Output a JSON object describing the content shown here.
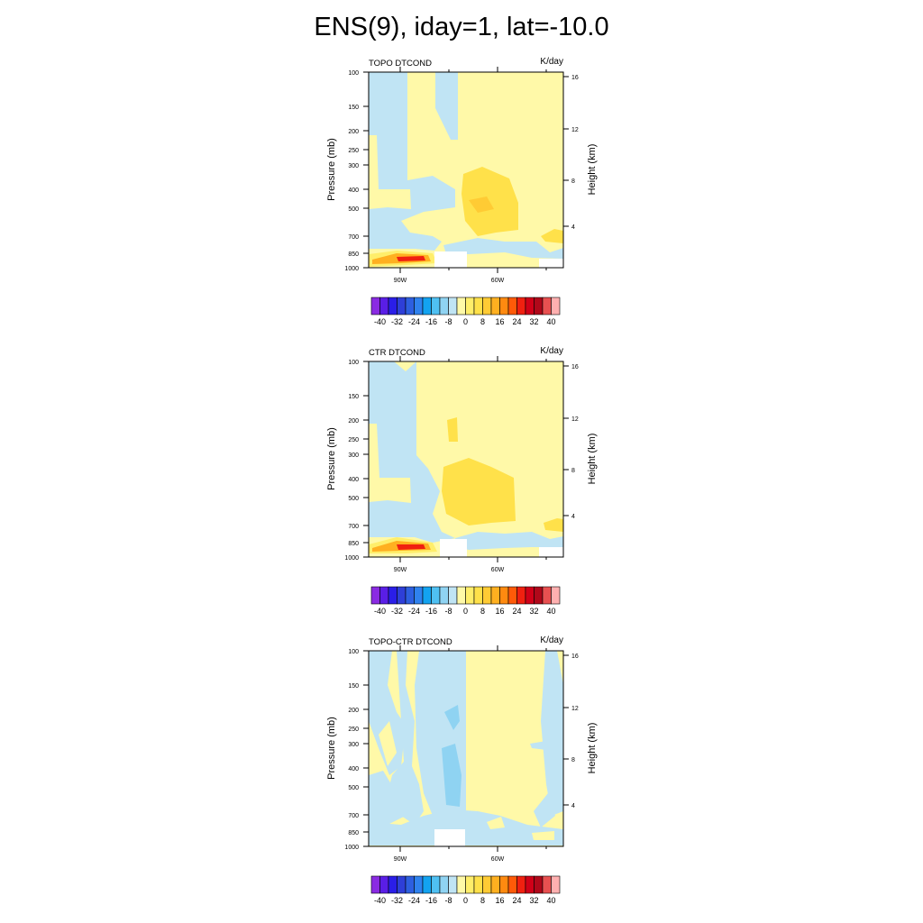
{
  "title": "ENS(9), iday=1, lat=-10.0",
  "units": "K/day",
  "left_axis_label": "Pressure (mb)",
  "right_axis_label": "Height (km)",
  "pressure_ticks": [
    "100",
    "150",
    "200",
    "250",
    "300",
    "400",
    "500",
    "700",
    "850",
    "1000"
  ],
  "height_ticks": [
    "16",
    "12",
    "8",
    "4"
  ],
  "lon_ticks": [
    "90W",
    "60W"
  ],
  "colorbar": {
    "labels": [
      "-40",
      "-32",
      "-24",
      "-16",
      "-8",
      "0",
      "8",
      "16",
      "24",
      "32",
      "40"
    ],
    "colors": [
      "#8a2be2",
      "#5a1ee6",
      "#2a1ee8",
      "#2e3fd8",
      "#2d5fe0",
      "#2f82ee",
      "#13a3f0",
      "#4fc0f2",
      "#8fd3f2",
      "#c0e4f4",
      "#fff9a8",
      "#ffee6a",
      "#ffe14a",
      "#ffcb34",
      "#ffb020",
      "#ff8a10",
      "#ff5a08",
      "#f02010",
      "#d00018",
      "#b0081a",
      "#e85050",
      "#ffb0b0"
    ]
  },
  "chart_data": [
    {
      "type": "heatmap",
      "title": "TOPO DTCOND",
      "units": "K/day",
      "ylabel": "Pressure (mb)",
      "y2label": "Height (km)",
      "x_ticks": [
        "90W",
        "60W"
      ],
      "y_ticks": [
        100,
        150,
        200,
        250,
        300,
        400,
        500,
        700,
        850,
        1000
      ],
      "y2_ticks": [
        16,
        12,
        8,
        4
      ],
      "levels": [
        -40,
        -36,
        -32,
        -28,
        -24,
        -20,
        -16,
        -12,
        -8,
        -4,
        0,
        4,
        8,
        12,
        16,
        20,
        24,
        28,
        32,
        36,
        40
      ],
      "features": [
        {
          "kind": "cooling",
          "range": [
            -4,
            0
          ],
          "region": "west column 98W-90W, 100-500 mb"
        },
        {
          "kind": "cooling",
          "range": [
            -4,
            0
          ],
          "region": "lower band 500-750 mb"
        },
        {
          "kind": "cooling",
          "range": [
            -4,
            0
          ],
          "region": "narrow column 83W-80W, 100-200 mb"
        },
        {
          "kind": "heating",
          "range": [
            0,
            4
          ],
          "region": "background east of 80W"
        },
        {
          "kind": "heating",
          "range": [
            4,
            8
          ],
          "region": "core near 62W, 330-560 mb"
        },
        {
          "kind": "heating",
          "range": [
            8,
            16
          ],
          "region": "inner core near 60W, 470-520 mb"
        },
        {
          "kind": "heating",
          "range": [
            8,
            32
          ],
          "region": "boundary layer 97W-85W, 850-900 mb"
        },
        {
          "kind": "missing",
          "region": "below surface 82W-76W, 880-1000 mb"
        }
      ]
    },
    {
      "type": "heatmap",
      "title": "CTR DTCOND",
      "units": "K/day",
      "ylabel": "Pressure (mb)",
      "y2label": "Height (km)",
      "x_ticks": [
        "90W",
        "60W"
      ],
      "y_ticks": [
        100,
        150,
        200,
        250,
        300,
        400,
        500,
        700,
        850,
        1000
      ],
      "y2_ticks": [
        16,
        12,
        8,
        4
      ],
      "levels": [
        -40,
        -36,
        -32,
        -28,
        -24,
        -20,
        -16,
        -12,
        -8,
        -4,
        0,
        4,
        8,
        12,
        16,
        20,
        24,
        28,
        32,
        36,
        40
      ],
      "features": [
        {
          "kind": "cooling",
          "range": [
            -4,
            0
          ],
          "region": "west column 98W-83W, 100-800 mb"
        },
        {
          "kind": "heating",
          "range": [
            0,
            4
          ],
          "region": "background east of 83W"
        },
        {
          "kind": "heating",
          "range": [
            4,
            8
          ],
          "region": "core near 70W, 340-650 mb"
        },
        {
          "kind": "heating",
          "range": [
            4,
            8
          ],
          "region": "small patch 75W, 190-250 mb"
        },
        {
          "kind": "heating",
          "range": [
            8,
            32
          ],
          "region": "boundary layer 97W-85W, 840-900 mb"
        },
        {
          "kind": "missing",
          "region": "below surface 80W-76W, 880-1000 mb"
        }
      ]
    },
    {
      "type": "heatmap",
      "title": "TOPO-CTR DTCOND",
      "units": "K/day",
      "ylabel": "Pressure (mb)",
      "y2label": "Height (km)",
      "x_ticks": [
        "90W",
        "60W"
      ],
      "y_ticks": [
        100,
        150,
        200,
        250,
        300,
        400,
        500,
        700,
        850,
        1000
      ],
      "y2_ticks": [
        16,
        12,
        8,
        4
      ],
      "levels": [
        -40,
        -36,
        -32,
        -28,
        -24,
        -20,
        -16,
        -12,
        -8,
        -4,
        0,
        4,
        8,
        12,
        16,
        20,
        24,
        28,
        32,
        36,
        40
      ],
      "features": [
        {
          "kind": "cooling",
          "range": [
            -4,
            0
          ],
          "region": "column 83W-74W, 100-850 mb"
        },
        {
          "kind": "cooling",
          "range": [
            -8,
            -4
          ],
          "region": "patch 77W, 350-600 mb"
        },
        {
          "kind": "cooling",
          "range": [
            -4,
            0
          ],
          "region": "scattered patches 98W-85W"
        },
        {
          "kind": "cooling",
          "range": [
            -4,
            0
          ],
          "region": "eastern edge 56W-54W, 100-750 mb"
        },
        {
          "kind": "heating",
          "range": [
            0,
            4
          ],
          "region": "background 74W-57W"
        },
        {
          "kind": "missing",
          "region": "below surface 80W-76W, 900-1000 mb"
        }
      ]
    }
  ]
}
